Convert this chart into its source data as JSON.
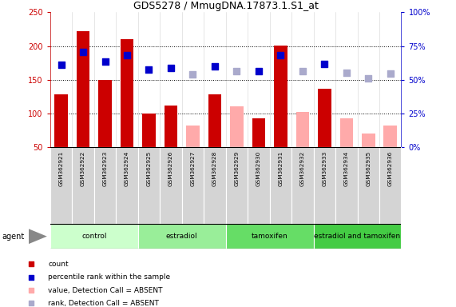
{
  "title": "GDS5278 / MmugDNA.17873.1.S1_at",
  "samples": [
    "GSM362921",
    "GSM362922",
    "GSM362923",
    "GSM362924",
    "GSM362925",
    "GSM362926",
    "GSM362927",
    "GSM362928",
    "GSM362929",
    "GSM362930",
    "GSM362931",
    "GSM362932",
    "GSM362933",
    "GSM362934",
    "GSM362935",
    "GSM362936"
  ],
  "bar_values": [
    128,
    222,
    150,
    210,
    100,
    112,
    null,
    128,
    null,
    93,
    201,
    null,
    137,
    null,
    null,
    null
  ],
  "bar_absent_values": [
    null,
    null,
    null,
    null,
    null,
    null,
    82,
    null,
    111,
    null,
    null,
    102,
    null,
    93,
    70,
    82
  ],
  "bar_color_present": "#cc0000",
  "bar_color_absent": "#ffaaaa",
  "dot_present_values": [
    172,
    191,
    177,
    187,
    165,
    167,
    null,
    170,
    null,
    163,
    186,
    null,
    174,
    null,
    null,
    null
  ],
  "dot_absent_values": [
    null,
    null,
    null,
    null,
    null,
    null,
    158,
    null,
    163,
    null,
    null,
    163,
    null,
    160,
    152,
    159
  ],
  "dot_color_present": "#0000cc",
  "dot_color_absent": "#aaaacc",
  "ylim_left": [
    50,
    250
  ],
  "left_yticks": [
    50,
    100,
    150,
    200,
    250
  ],
  "right_yticklabels": [
    "0%",
    "25%",
    "50%",
    "75%",
    "100%"
  ],
  "right_ytick_positions": [
    50,
    100,
    150,
    200,
    250
  ],
  "gridlines": [
    100,
    150,
    200
  ],
  "groups": [
    {
      "label": "control",
      "start": 0,
      "end": 4,
      "color": "#ccffcc"
    },
    {
      "label": "estradiol",
      "start": 4,
      "end": 8,
      "color": "#99ee99"
    },
    {
      "label": "tamoxifen",
      "start": 8,
      "end": 12,
      "color": "#66dd66"
    },
    {
      "label": "estradiol and tamoxifen",
      "start": 12,
      "end": 16,
      "color": "#44cc44"
    }
  ],
  "legend_items": [
    {
      "label": "count",
      "color": "#cc0000"
    },
    {
      "label": "percentile rank within the sample",
      "color": "#0000cc"
    },
    {
      "label": "value, Detection Call = ABSENT",
      "color": "#ffaaaa"
    },
    {
      "label": "rank, Detection Call = ABSENT",
      "color": "#aaaacc"
    }
  ],
  "bar_width": 0.6,
  "dot_size": 30,
  "left_label_color": "#cc0000",
  "right_label_color": "#0000cc"
}
